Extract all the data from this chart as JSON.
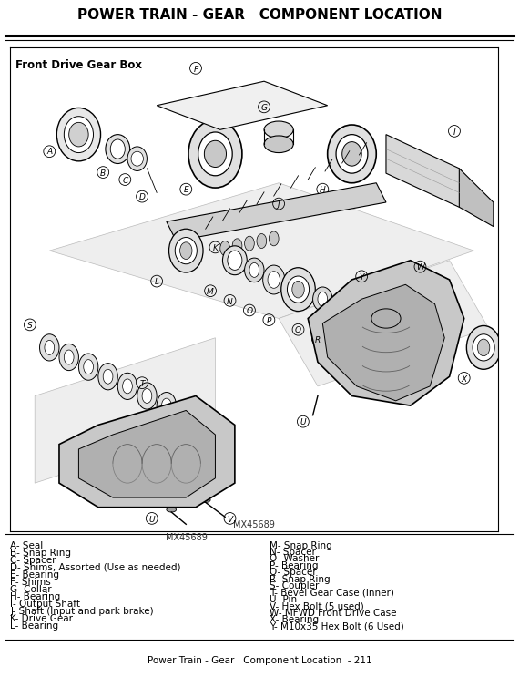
{
  "title": "POWER TRAIN - GEAR   COMPONENT LOCATION",
  "subtitle": "Front Drive Gear Box",
  "figure_label": "MX45689",
  "footer": "Power Train - Gear   Component Location  - 211",
  "bg_color": "#ffffff",
  "title_fontsize": 11,
  "subtitle_fontsize": 8.5,
  "body_fontsize": 7.5,
  "footer_fontsize": 7.5,
  "left_legend": [
    "A- Seal",
    "B- Snap Ring",
    "C- Spacer",
    "D- Shims, Assorted (Use as needed)",
    "E- Bearing",
    "F- Shims",
    "G- Collar",
    "H- Bearing",
    "I- Output Shaft",
    "J- Shaft (Input and park brake)",
    "K- Drive Gear",
    "L- Bearing"
  ],
  "right_legend": [
    "M- Snap Ring",
    "N- Spacer",
    "O- Washer",
    "P- Bearing",
    "Q- Spacer",
    "R- Snap Ring",
    "S- Coupler",
    "T- Bevel Gear Case (Inner)",
    "U- Pin",
    "V- Hex Bolt (5 used)",
    "W- MFWD Front Drive Case",
    "X- Bearing",
    "Y- M10x35 Hex Bolt (6 Used)"
  ]
}
